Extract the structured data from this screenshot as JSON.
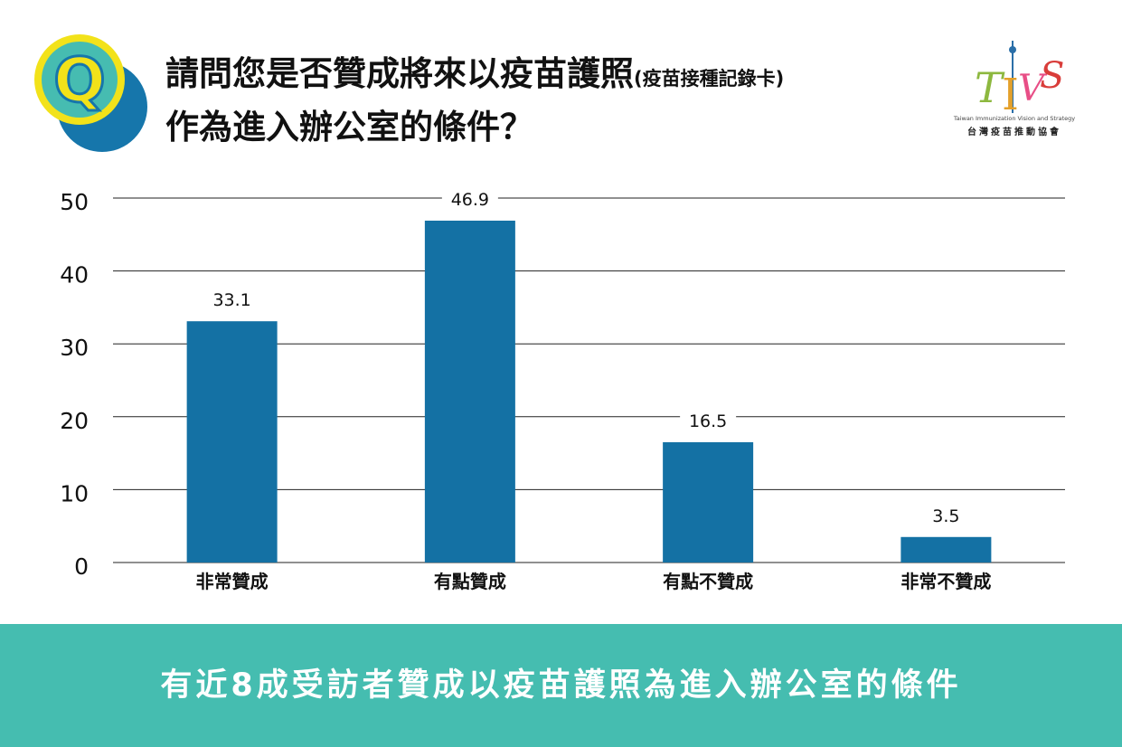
{
  "title": {
    "line1_main": "請問您是否贊成將來以疫苗護照",
    "line1_sub": "(疫苗接種記錄卡)",
    "line2": "作為進入辦公室的條件？"
  },
  "badge": {
    "letter": "Q"
  },
  "logo": {
    "mark_letters": [
      "T",
      "I",
      "V",
      "S"
    ],
    "name_en": "Taiwan Immunization Vision and Strategy",
    "name_zh": "台灣疫苗推動協會"
  },
  "colors": {
    "bar": "#1471a4",
    "footer": "#45bdb0",
    "badge_yellow": "#f2e21a",
    "badge_teal": "#46bcb1",
    "badge_blue": "#1676ab"
  },
  "chart_data": {
    "type": "bar",
    "categories": [
      "非常贊成",
      "有點贊成",
      "有點不贊成",
      "非常不贊成"
    ],
    "values": [
      33.1,
      46.9,
      16.5,
      3.5
    ],
    "yticks": [
      0,
      10,
      20,
      30,
      40,
      50
    ],
    "ylim": [
      0,
      50
    ],
    "grid": true,
    "title": "",
    "xlabel": "",
    "ylabel": ""
  },
  "footer": {
    "text": "有近8成受訪者贊成以疫苗護照為進入辦公室的條件"
  }
}
